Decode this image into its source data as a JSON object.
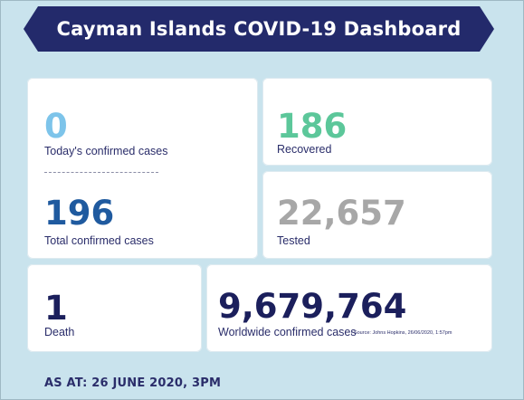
{
  "title": "Cayman Islands COVID-19 Dashboard",
  "stats": {
    "today_confirmed": {
      "value": "0",
      "label": "Today's confirmed cases",
      "color": "#7dc4ea"
    },
    "total_confirmed": {
      "value": "196",
      "label": "Total confirmed cases",
      "color": "#1f5a9f"
    },
    "recovered": {
      "value": "186",
      "label": "Recovered",
      "color": "#5cc79a"
    },
    "tested": {
      "value": "22,657",
      "label": "Tested",
      "color": "#a7a7a7"
    },
    "death": {
      "value": "1",
      "label": "Death",
      "color": "#1b1f5c"
    },
    "worldwide": {
      "value": "9,679,764",
      "label": "Worldwide confirmed cases",
      "source": "| Source: Johns Hopkins, 26/06/2020, 1:57pm",
      "color": "#1b1f5c"
    }
  },
  "footer": {
    "as_at": "AS AT: 26 JUNE 2020, 3PM"
  },
  "colors": {
    "background": "#c9e3ed",
    "banner": "#232a6b",
    "card": "#ffffff",
    "text": "#2a2d6a"
  }
}
